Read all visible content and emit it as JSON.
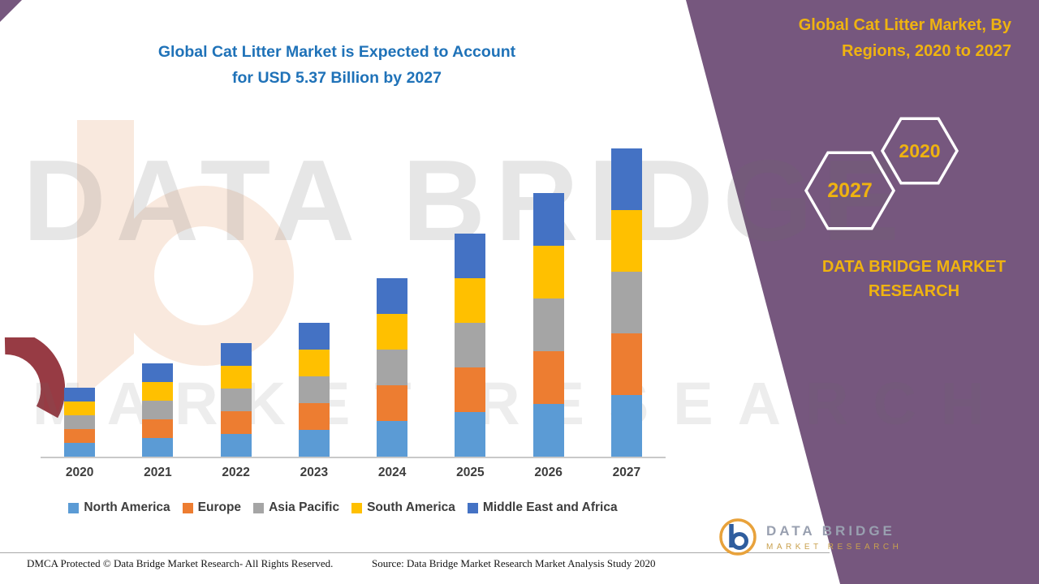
{
  "left_title": {
    "line1": "Global Cat Litter Market is Expected to Account",
    "line2": "for USD 5.37 Billion by 2027"
  },
  "right_panel": {
    "title_line1": "Global Cat Litter Market, By",
    "title_line2": "Regions, 2020 to 2027",
    "hexagons": [
      {
        "label": "2027"
      },
      {
        "label": "2020"
      }
    ],
    "brand_line1": "DATA BRIDGE MARKET",
    "brand_line2": "RESEARCH"
  },
  "watermark": {
    "line1": "DATA BRIDGE",
    "line2": "MARKET RESEARCH"
  },
  "logo": {
    "name": "DATA BRIDGE",
    "tagline": "MARKET RESEARCH"
  },
  "footer": {
    "dmca": "DMCA Protected © Data Bridge Market Research- All Rights Reserved.",
    "source": "Source: Data Bridge Market Research Market Analysis Study 2020"
  },
  "colors": {
    "panel_purple": "#76577E",
    "accent_gold": "#EFB310",
    "title_blue": "#1F72B8"
  },
  "chart_data": {
    "type": "bar",
    "stacked": true,
    "title": "Global Cat Litter Market is Expected to Account for USD 5.37 Billion by 2027",
    "unit": "USD Billion",
    "categories": [
      "2020",
      "2021",
      "2022",
      "2023",
      "2024",
      "2025",
      "2026",
      "2027"
    ],
    "series": [
      {
        "name": "North America",
        "color": "#5B9BD5",
        "values": [
          0.24,
          0.32,
          0.4,
          0.47,
          0.62,
          0.77,
          0.92,
          1.074
        ]
      },
      {
        "name": "Europe",
        "color": "#ED7D31",
        "values": [
          0.24,
          0.32,
          0.4,
          0.47,
          0.62,
          0.77,
          0.92,
          1.074
        ]
      },
      {
        "name": "Asia Pacific",
        "color": "#A5A5A5",
        "values": [
          0.24,
          0.32,
          0.4,
          0.47,
          0.62,
          0.77,
          0.92,
          1.074
        ]
      },
      {
        "name": "South America",
        "color": "#FFC000",
        "values": [
          0.24,
          0.32,
          0.4,
          0.47,
          0.62,
          0.77,
          0.92,
          1.074
        ]
      },
      {
        "name": "Middle East and Africa",
        "color": "#4472C4",
        "values": [
          0.24,
          0.32,
          0.4,
          0.47,
          0.62,
          0.77,
          0.92,
          1.074
        ]
      }
    ],
    "totals": [
      1.2,
      1.6,
      2.0,
      2.35,
      3.1,
      3.85,
      4.6,
      5.37
    ],
    "ylim": [
      0,
      5.6
    ],
    "grid": false,
    "legend_position": "bottom",
    "xlabel": "",
    "ylabel": ""
  }
}
